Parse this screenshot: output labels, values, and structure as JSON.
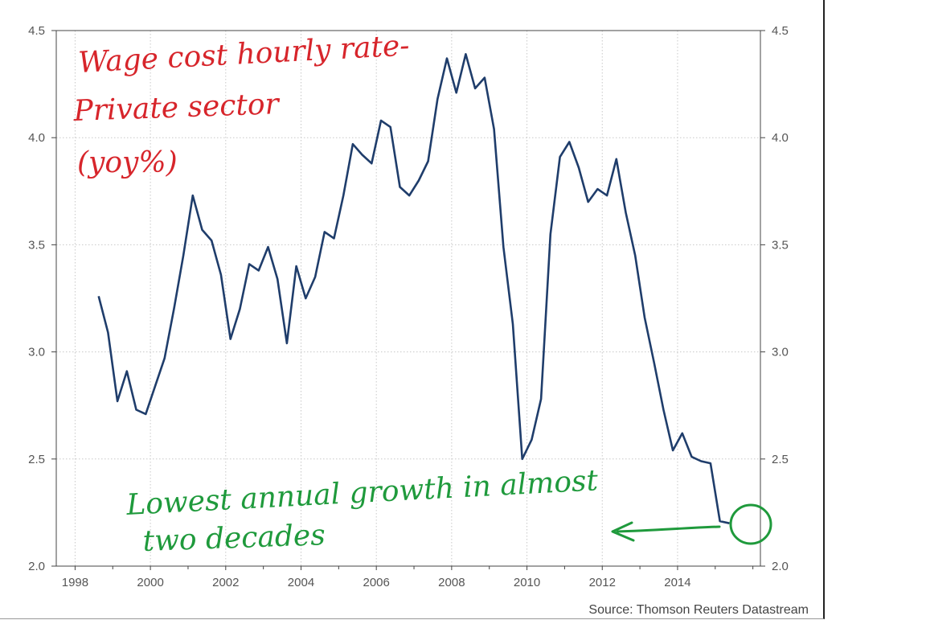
{
  "chart_data": {
    "type": "line",
    "xlim": [
      1997.5,
      2016.2
    ],
    "ylim": [
      2.0,
      4.5
    ],
    "x_ticks": [
      "1998",
      "2000",
      "2002",
      "2004",
      "2006",
      "2008",
      "2010",
      "2012",
      "2014"
    ],
    "x_tick_values": [
      1998,
      2000,
      2002,
      2004,
      2006,
      2008,
      2010,
      2012,
      2014
    ],
    "y_ticks": [
      "2.0",
      "2.5",
      "3.0",
      "3.5",
      "4.0",
      "4.5"
    ],
    "y_tick_values": [
      2.0,
      2.5,
      3.0,
      3.5,
      4.0,
      4.5
    ],
    "grid": true,
    "series": [
      {
        "color": "#1f3d6b",
        "x": [
          1998.625,
          1998.875,
          1999.125,
          1999.375,
          1999.625,
          1999.875,
          2000.125,
          2000.375,
          2000.625,
          2000.875,
          2001.125,
          2001.375,
          2001.625,
          2001.875,
          2002.125,
          2002.375,
          2002.625,
          2002.875,
          2003.125,
          2003.375,
          2003.625,
          2003.875,
          2004.125,
          2004.375,
          2004.625,
          2004.875,
          2005.125,
          2005.375,
          2005.625,
          2005.875,
          2006.125,
          2006.375,
          2006.625,
          2006.875,
          2007.125,
          2007.375,
          2007.625,
          2007.875,
          2008.125,
          2008.375,
          2008.625,
          2008.875,
          2009.125,
          2009.375,
          2009.625,
          2009.875,
          2010.125,
          2010.375,
          2010.625,
          2010.875,
          2011.125,
          2011.375,
          2011.625,
          2011.875,
          2012.125,
          2012.375,
          2012.625,
          2012.875,
          2013.125,
          2013.375,
          2013.625,
          2013.875,
          2014.125,
          2014.375,
          2014.625,
          2014.875,
          2015.125,
          2015.375
        ],
        "y": [
          3.26,
          3.09,
          2.77,
          2.91,
          2.73,
          2.71,
          2.84,
          2.97,
          3.2,
          3.45,
          3.73,
          3.57,
          3.52,
          3.36,
          3.06,
          3.2,
          3.41,
          3.38,
          3.49,
          3.34,
          3.04,
          3.4,
          3.25,
          3.35,
          3.56,
          3.53,
          3.73,
          3.97,
          3.92,
          3.88,
          4.08,
          4.05,
          3.77,
          3.73,
          3.8,
          3.89,
          4.18,
          4.37,
          4.21,
          4.39,
          4.23,
          4.28,
          4.04,
          3.49,
          3.13,
          2.5,
          2.59,
          2.78,
          3.55,
          3.91,
          3.98,
          3.86,
          3.7,
          3.76,
          3.73,
          3.9,
          3.65,
          3.45,
          3.16,
          2.95,
          2.73,
          2.54,
          2.62,
          2.51,
          2.49,
          2.48,
          2.21,
          2.2
        ]
      }
    ]
  },
  "source": "Source: Thomson Reuters Datastream",
  "annotations": {
    "title_line1": "Wage cost hourly rate-",
    "title_line2": "Private sector",
    "title_line3": "(yoy%)",
    "note_line1": "Lowest annual growth in almost",
    "note_line2": "two decades"
  },
  "colors": {
    "line": "#1f3d6b",
    "annotation_red": "#d7252b",
    "annotation_green": "#1f9a3c"
  }
}
